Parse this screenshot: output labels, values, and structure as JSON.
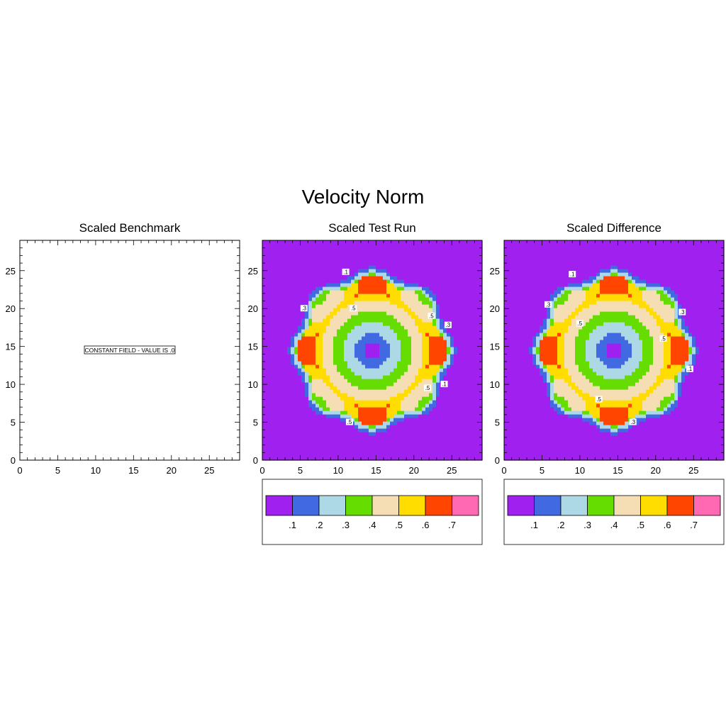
{
  "figure": {
    "title": "Velocity Norm"
  },
  "colors": [
    "#a020f0",
    "#4169e1",
    "#add8e6",
    "#66dd00",
    "#f5deb3",
    "#ffdd00",
    "#ff4500",
    "#ff69b4"
  ],
  "chart_data": [
    {
      "type": "heatmap",
      "title": "Scaled Benchmark",
      "xlim": [
        0,
        29
      ],
      "ylim": [
        0,
        29
      ],
      "xticks": [
        "0",
        "5",
        "10",
        "15",
        "20",
        "25"
      ],
      "yticks": [
        "0",
        "5",
        "10",
        "15",
        "20",
        "25"
      ],
      "field": "constant",
      "value": 0,
      "annotation": "CONSTANT FIELD - VALUE IS .0",
      "colorbar": false
    },
    {
      "type": "heatmap",
      "title": "Scaled Test Run",
      "xlim": [
        0,
        29
      ],
      "ylim": [
        0,
        29
      ],
      "xticks": [
        "0",
        "5",
        "10",
        "15",
        "20",
        "25"
      ],
      "yticks": [
        "0",
        "5",
        "10",
        "15",
        "20",
        "25"
      ],
      "center": [
        14.5,
        14.5
      ],
      "levels": [
        0.1,
        0.2,
        0.3,
        0.4,
        0.5,
        0.6,
        0.7
      ],
      "level_labels": [
        ".1",
        ".2",
        ".3",
        ".4",
        ".5",
        ".6",
        ".7"
      ],
      "contour_labels": [
        {
          "text": ".1",
          "x": 11,
          "y": 24.8
        },
        {
          "text": ".3",
          "x": 5.5,
          "y": 20
        },
        {
          "text": ".5",
          "x": 12,
          "y": 20
        },
        {
          "text": ".5",
          "x": 22.3,
          "y": 19
        },
        {
          "text": ".3",
          "x": 24.5,
          "y": 17.8
        },
        {
          "text": ".5",
          "x": 21.8,
          "y": 9.5
        },
        {
          "text": ".1",
          "x": 24,
          "y": 10
        },
        {
          "text": ".5",
          "x": 11.5,
          "y": 5
        }
      ],
      "colorbar": true
    },
    {
      "type": "heatmap",
      "title": "Scaled Difference",
      "xlim": [
        0,
        29
      ],
      "ylim": [
        0,
        29
      ],
      "xticks": [
        "0",
        "5",
        "10",
        "15",
        "20",
        "25"
      ],
      "yticks": [
        "0",
        "5",
        "10",
        "15",
        "20",
        "25"
      ],
      "center": [
        14.5,
        14.5
      ],
      "levels": [
        0.1,
        0.2,
        0.3,
        0.4,
        0.5,
        0.6,
        0.7
      ],
      "level_labels": [
        ".1",
        ".2",
        ".3",
        ".4",
        ".5",
        ".6",
        ".7"
      ],
      "contour_labels": [
        {
          "text": ".1",
          "x": 9,
          "y": 24.5
        },
        {
          "text": ".3",
          "x": 5.8,
          "y": 20.5
        },
        {
          "text": ".5",
          "x": 10,
          "y": 18
        },
        {
          "text": ".3",
          "x": 23.5,
          "y": 19.5
        },
        {
          "text": ".5",
          "x": 21,
          "y": 16
        },
        {
          "text": ".1",
          "x": 24.5,
          "y": 12
        },
        {
          "text": ".5",
          "x": 12.5,
          "y": 8
        },
        {
          "text": ".3",
          "x": 17,
          "y": 5
        }
      ],
      "colorbar": true
    }
  ]
}
